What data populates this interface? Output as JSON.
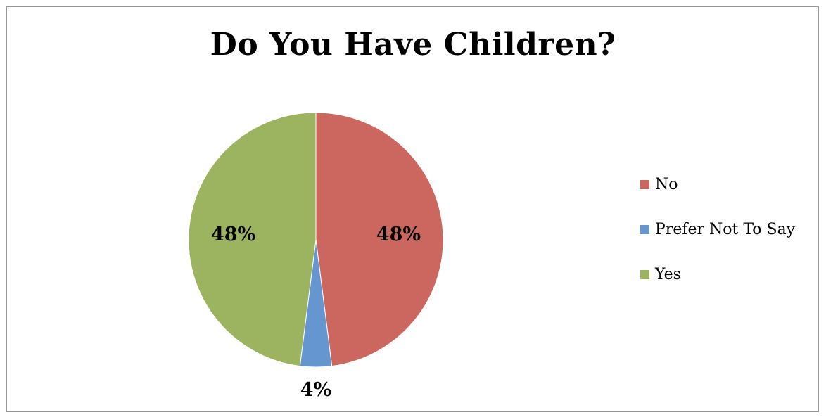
{
  "chart_data": {
    "type": "pie",
    "title": "Do You Have Children?",
    "categories": [
      "No",
      "Prefer Not To Say",
      "Yes"
    ],
    "values": [
      48,
      4,
      48
    ],
    "value_labels": [
      "48%",
      "4%",
      "48%"
    ],
    "colors": [
      "#cc6760",
      "#6596cf",
      "#9cb35f"
    ],
    "legend": "right"
  }
}
